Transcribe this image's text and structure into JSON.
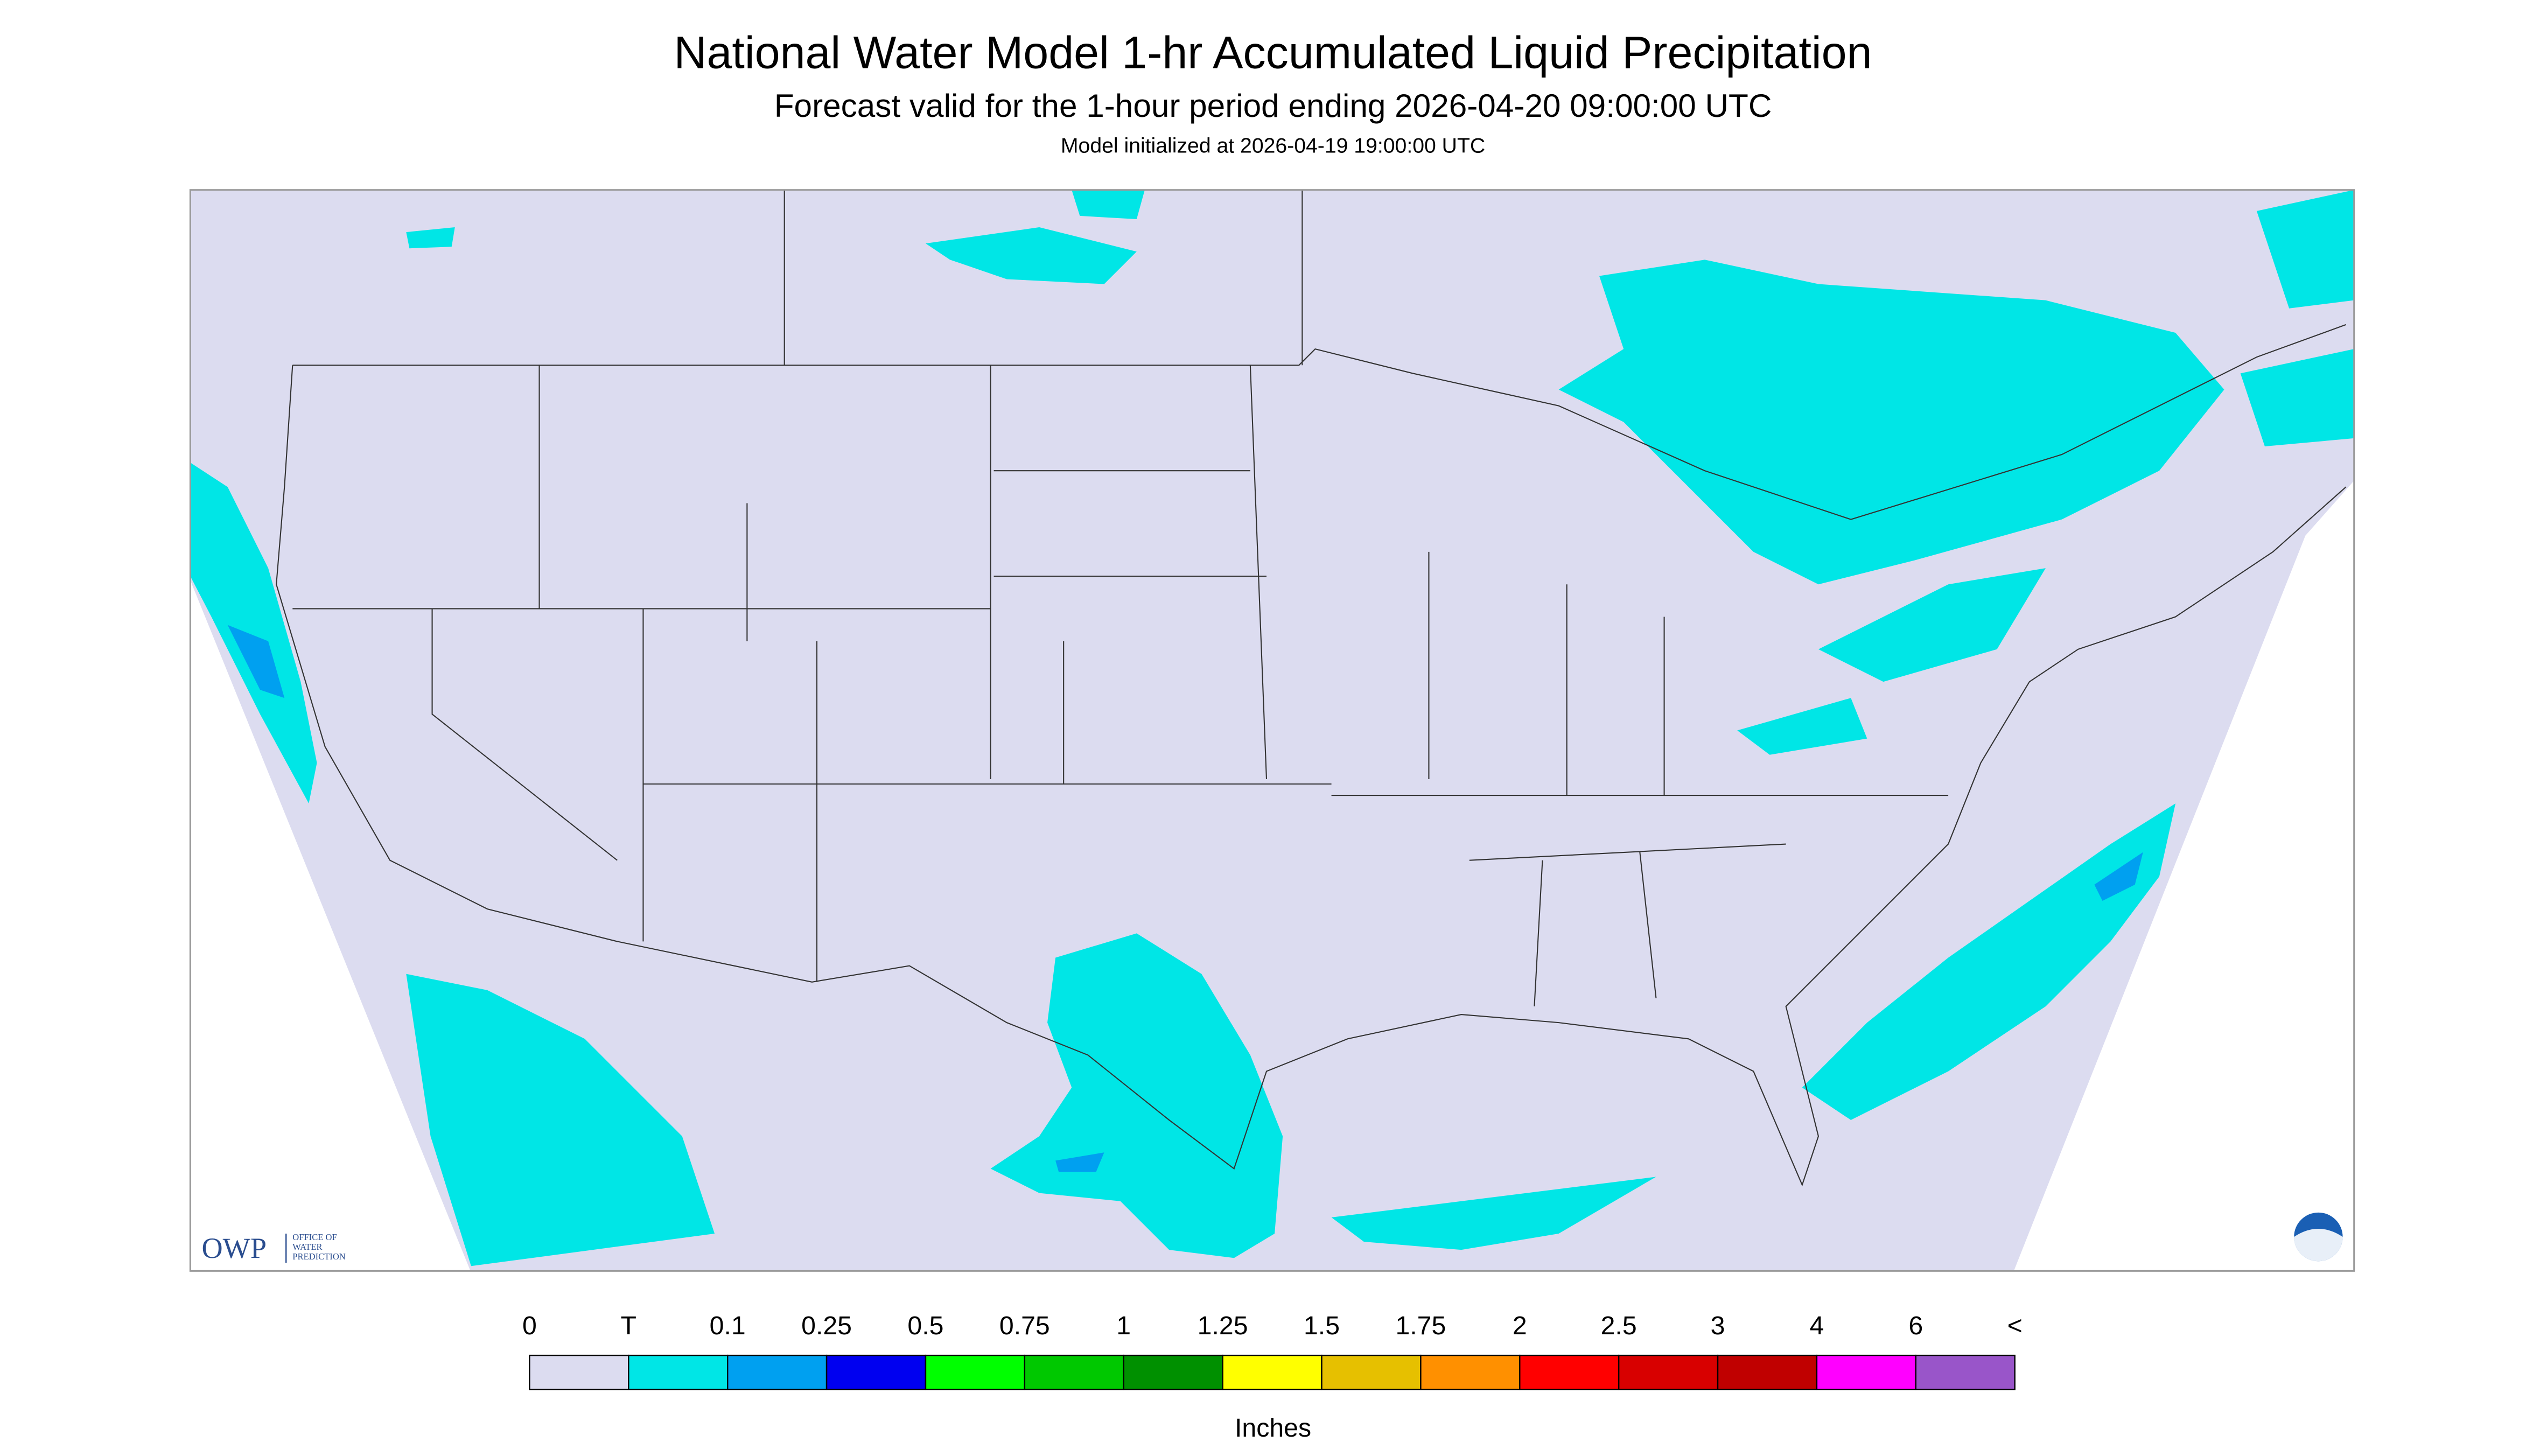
{
  "header": {
    "title": "National Water Model 1-hr Accumulated Liquid Precipitation",
    "subtitle": "Forecast valid for the 1-hour period ending 2026-04-20 09:00:00 UTC",
    "note": "Model initialized at 2026-04-19 19:00:00 UTC"
  },
  "legend": {
    "labels": [
      "0",
      "T",
      "0.1",
      "0.25",
      "0.5",
      "0.75",
      "1",
      "1.25",
      "1.5",
      "1.75",
      "2",
      "2.5",
      "3",
      "4",
      "6",
      "<"
    ],
    "colors": [
      "#dcdcf0",
      "#00e6e6",
      "#00a0f0",
      "#0000f0",
      "#00ff00",
      "#00c800",
      "#009000",
      "#ffff00",
      "#e6c000",
      "#ff9000",
      "#ff0000",
      "#d80000",
      "#c00000",
      "#ff00ff",
      "#9955c9"
    ],
    "unit": "Inches"
  },
  "logo": {
    "abbr": "OWP",
    "lines": [
      "OFFICE OF",
      "WATER",
      "PREDICTION"
    ]
  }
}
